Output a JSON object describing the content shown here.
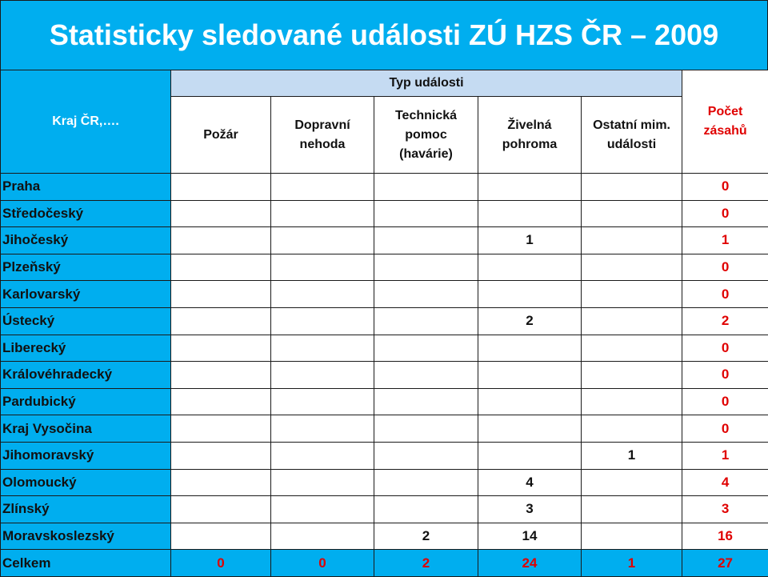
{
  "slide": {
    "title": "Statisticky sledované události ZÚ HZS ČR – 2009"
  },
  "table": {
    "region_header": "Kraj ČR,….",
    "type_group_header": "Typ události",
    "type_columns": [
      {
        "lines": [
          "Požár"
        ]
      },
      {
        "lines": [
          "Dopravní",
          "nehoda"
        ]
      },
      {
        "lines": [
          "Technická",
          "pomoc",
          "(havárie)"
        ]
      },
      {
        "lines": [
          "Živelná",
          "pohroma"
        ]
      },
      {
        "lines": [
          "Ostatní mim.",
          "události"
        ]
      }
    ],
    "count_header": [
      "Počet",
      "zásahů"
    ],
    "rows": [
      {
        "region": "Praha",
        "values": [
          "",
          "",
          "",
          "",
          ""
        ],
        "total": "0"
      },
      {
        "region": "Středočeský",
        "values": [
          "",
          "",
          "",
          "",
          ""
        ],
        "total": "0"
      },
      {
        "region": "Jihočeský",
        "values": [
          "",
          "",
          "",
          "1",
          ""
        ],
        "total": "1"
      },
      {
        "region": "Plzeňský",
        "values": [
          "",
          "",
          "",
          "",
          ""
        ],
        "total": "0"
      },
      {
        "region": "Karlovarský",
        "values": [
          "",
          "",
          "",
          "",
          ""
        ],
        "total": "0"
      },
      {
        "region": "Ústecký",
        "values": [
          "",
          "",
          "",
          "2",
          ""
        ],
        "total": "2"
      },
      {
        "region": "Liberecký",
        "values": [
          "",
          "",
          "",
          "",
          ""
        ],
        "total": "0"
      },
      {
        "region": "Královéhradecký",
        "values": [
          "",
          "",
          "",
          "",
          ""
        ],
        "total": "0"
      },
      {
        "region": "Pardubický",
        "values": [
          "",
          "",
          "",
          "",
          ""
        ],
        "total": "0"
      },
      {
        "region": "Kraj Vysočina",
        "values": [
          "",
          "",
          "",
          "",
          ""
        ],
        "total": "0"
      },
      {
        "region": "Jihomoravský",
        "values": [
          "",
          "",
          "",
          "",
          "1"
        ],
        "total": "1"
      },
      {
        "region": "Olomoucký",
        "values": [
          "",
          "",
          "",
          "4",
          ""
        ],
        "total": "4"
      },
      {
        "region": "Zlínský",
        "values": [
          "",
          "",
          "",
          "3",
          ""
        ],
        "total": "3"
      },
      {
        "region": "Moravskoslezský",
        "values": [
          "",
          "",
          "2",
          "14",
          ""
        ],
        "total": "16"
      }
    ],
    "total_row": {
      "region": "Celkem",
      "values": [
        "0",
        "0",
        "2",
        "24",
        "1"
      ],
      "total": "27"
    }
  },
  "colors": {
    "accent_blue": "#00AEEF",
    "header_light_blue": "#C5DBF2",
    "total_red": "#E00000"
  }
}
